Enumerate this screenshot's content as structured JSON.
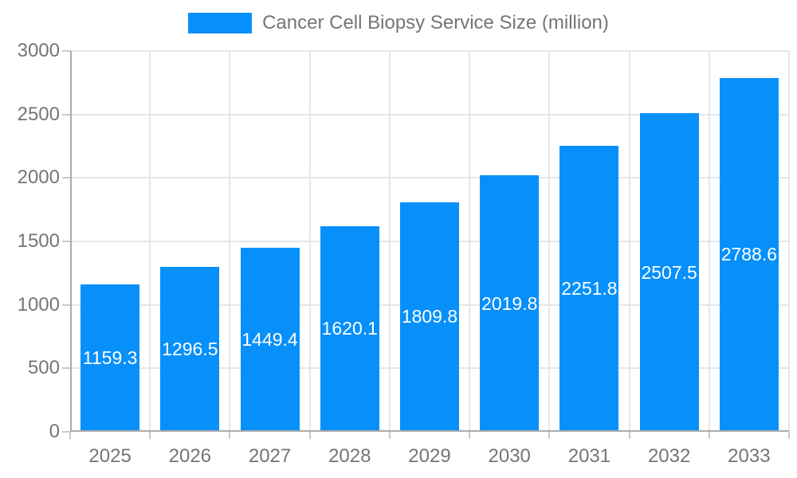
{
  "chart_data": {
    "type": "bar",
    "title": "Cancer Cell Biopsy Service Size (million)",
    "categories": [
      "2025",
      "2026",
      "2027",
      "2028",
      "2029",
      "2030",
      "2031",
      "2032",
      "2033"
    ],
    "values": [
      1159.3,
      1296.5,
      1449.4,
      1620.1,
      1809.8,
      2019.8,
      2251.8,
      2507.5,
      2788.6
    ],
    "xlabel": "",
    "ylabel": "",
    "ylim": [
      0,
      3000
    ],
    "yticks": [
      0,
      500,
      1000,
      1500,
      2000,
      2500,
      3000
    ],
    "grid": true,
    "legend_position": "top-center",
    "value_label_position": "inside-center",
    "colors": {
      "background": "#ffffff",
      "bar": "#0890fa",
      "bar_value_label": "#ffffff",
      "axis_line": "#ababab",
      "tick_line": "#c9c9c9",
      "gridline": "#e6e6e6",
      "tick_label": "#757575",
      "legend_text": "#757575"
    }
  }
}
